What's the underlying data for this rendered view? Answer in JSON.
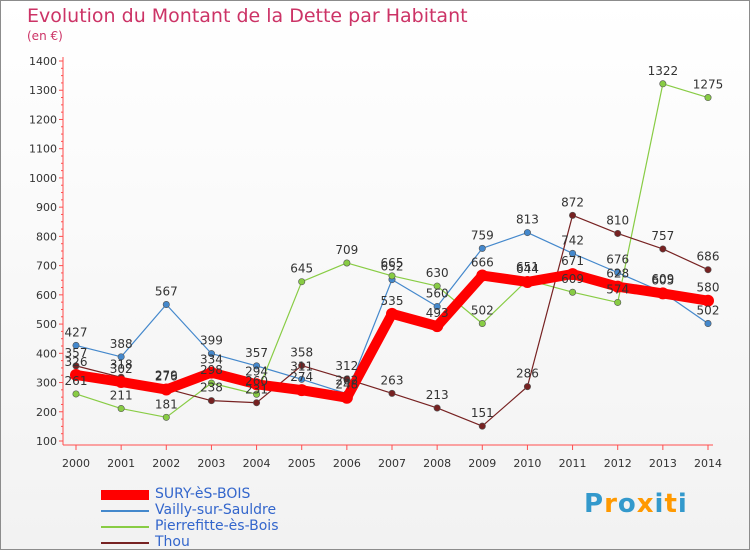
{
  "chart_data": {
    "type": "line",
    "title": "Evolution du Montant de la Dette par Habitant",
    "subtitle": "(en €)",
    "xlabel": "",
    "ylabel": "",
    "x": [
      "2000",
      "2001",
      "2002",
      "2003",
      "2004",
      "2005",
      "2006",
      "2007",
      "2008",
      "2009",
      "2010",
      "2011",
      "2012",
      "2013",
      "2014"
    ],
    "ylim": [
      100,
      1400
    ],
    "yticks": [
      "1400",
      "1300",
      "1200",
      "1100",
      "1000",
      "900",
      "800",
      "700",
      "600",
      "500",
      "400",
      "300",
      "200",
      "100"
    ],
    "grid": false,
    "legend": "bottom-left",
    "series": [
      {
        "name": "SURY-èS-BOIS",
        "color": "#ff0000",
        "values": [
          326,
          302,
          276,
          334,
          294,
          274,
          248,
          535,
          493,
          666,
          644,
          671,
          628,
          605,
          580
        ],
        "labels": [
          "326",
          "302",
          "276",
          "334",
          "294",
          "274",
          "248",
          "535",
          "493",
          "666",
          "644",
          "671",
          "628",
          "605",
          "580"
        ]
      },
      {
        "name": "Vailly-sur-Sauldre",
        "color": "#4488cc",
        "values": [
          427,
          388,
          567,
          399,
          357,
          311,
          262,
          652,
          560,
          759,
          813,
          742,
          676,
          609,
          502
        ],
        "labels": [
          "427",
          "388",
          "567",
          "399",
          "357",
          "311",
          "262",
          "652",
          "560",
          "759",
          "813",
          "742",
          "676",
          "609",
          "502"
        ]
      },
      {
        "name": "Pierrefitte-ès-Bois",
        "color": "#88cc44",
        "values": [
          261,
          211,
          181,
          298,
          260,
          645,
          709,
          665,
          630,
          502,
          651,
          609,
          574,
          1322,
          1275
        ],
        "labels": [
          "261",
          "211",
          "181",
          "298",
          "260",
          "645",
          "709",
          "665",
          "630",
          "502",
          "651",
          "609",
          "574",
          "1322",
          "1275"
        ]
      },
      {
        "name": "Thou",
        "color": "#772222",
        "values": [
          357,
          318,
          279,
          238,
          231,
          358,
          312,
          263,
          213,
          151,
          286,
          872,
          810,
          757,
          686
        ],
        "labels": [
          "357",
          "318",
          "279",
          "238",
          "231",
          "358",
          "312",
          "263",
          "213",
          "151",
          "286",
          "872",
          "810",
          "757",
          "686"
        ]
      }
    ]
  },
  "brand": {
    "letters": [
      "P",
      "r",
      "o",
      "x",
      "i",
      "t",
      "i"
    ],
    "colors": [
      "#3399cc",
      "#ff9900",
      "#3399cc",
      "#ff9900",
      "#3399cc",
      "#ff9900",
      "#3399cc"
    ]
  }
}
